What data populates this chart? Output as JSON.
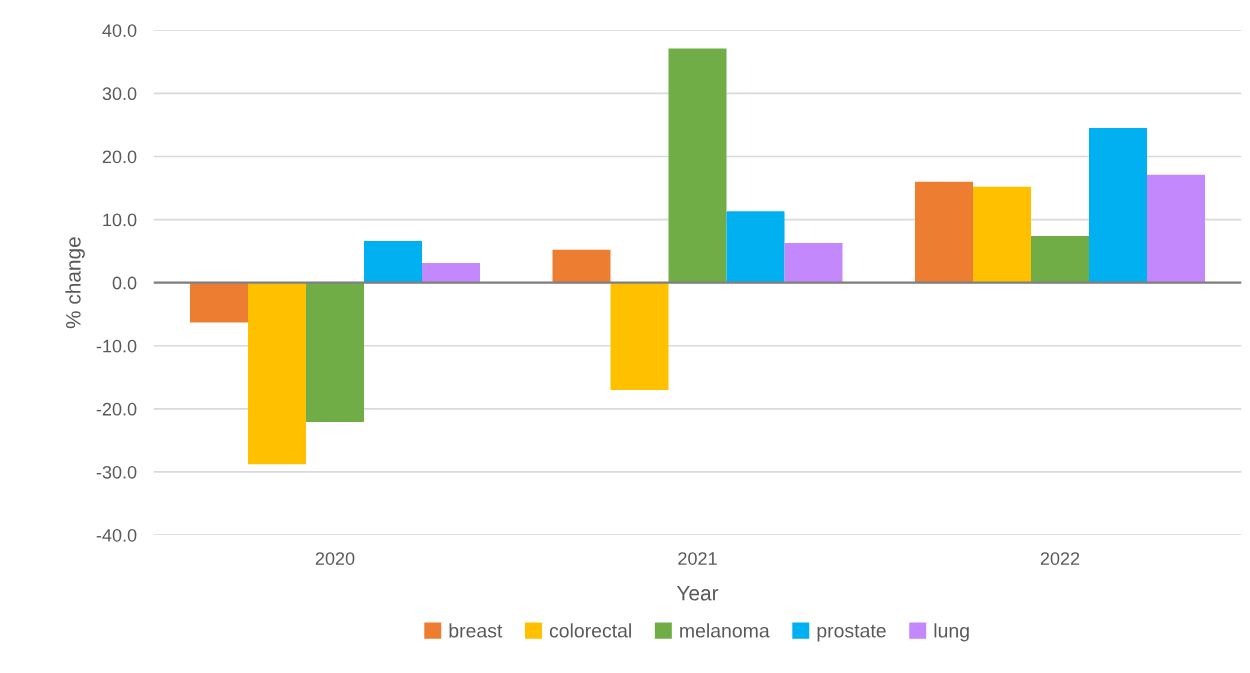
{
  "chart_data": {
    "type": "bar",
    "xlabel": "Year",
    "ylabel": "% change",
    "categories": [
      "2020",
      "2021",
      "2022"
    ],
    "series": [
      {
        "name": "breast",
        "color": "#ed7d31",
        "values": [
          -6.3,
          5.2,
          16.0
        ]
      },
      {
        "name": "colorectal",
        "color": "#ffc000",
        "values": [
          -28.8,
          -17.0,
          15.2
        ]
      },
      {
        "name": "melanoma",
        "color": "#70ad47",
        "values": [
          -22.1,
          37.1,
          7.4
        ]
      },
      {
        "name": "prostate",
        "color": "#00b0f0",
        "values": [
          6.6,
          11.3,
          24.5
        ]
      },
      {
        "name": "lung",
        "color": "#c288fc",
        "values": [
          3.1,
          6.3,
          17.1
        ]
      }
    ],
    "ylim": [
      -40,
      40
    ],
    "yticks": [
      {
        "value": -40,
        "label": "-40.0"
      },
      {
        "value": -30,
        "label": "-30.0"
      },
      {
        "value": -20,
        "label": "-20.0"
      },
      {
        "value": -10,
        "label": "-10.0"
      },
      {
        "value": 0,
        "label": "0.0"
      },
      {
        "value": 10,
        "label": "10.0"
      },
      {
        "value": 20,
        "label": "20.0"
      },
      {
        "value": 30,
        "label": "30.0"
      },
      {
        "value": 40,
        "label": "40.0"
      }
    ],
    "grid": "y",
    "legend": "bottom"
  }
}
